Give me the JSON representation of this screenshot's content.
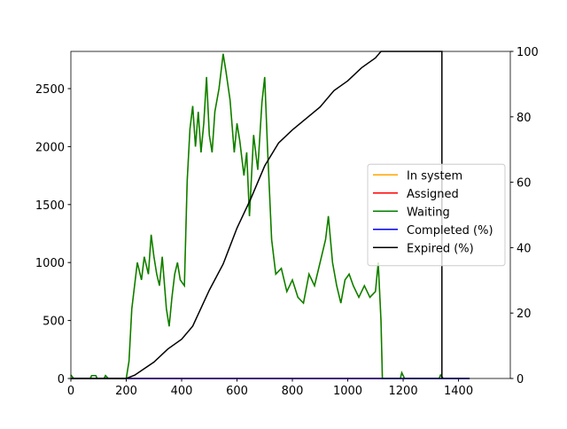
{
  "chart_data": {
    "type": "line",
    "xlim": [
      0,
      1587
    ],
    "xticks": [
      0,
      200,
      400,
      600,
      800,
      1000,
      1200,
      1400
    ],
    "ylim": [
      0,
      2821
    ],
    "yticks": [
      0,
      500,
      1000,
      1500,
      2000,
      2500
    ],
    "y2lim": [
      0,
      100
    ],
    "y2ticks": [
      0,
      20,
      40,
      60,
      80,
      100
    ],
    "legend": "center right",
    "series": [
      {
        "name": "In system",
        "color": "#ffa500",
        "x": [
          0,
          10,
          70,
          75,
          90,
          95,
          120,
          125,
          135,
          200,
          210,
          220,
          230,
          240,
          255,
          265,
          280,
          290,
          300,
          310,
          320,
          330,
          345,
          355,
          365,
          375,
          385,
          395,
          410,
          420,
          430,
          440,
          450,
          460,
          470,
          480,
          490,
          500,
          510,
          520,
          535,
          550,
          560,
          575,
          590,
          600,
          610,
          625,
          635,
          645,
          660,
          675,
          690,
          700,
          710,
          725,
          740,
          760,
          780,
          800,
          820,
          840,
          860,
          880,
          900,
          920,
          930,
          945,
          960,
          975,
          990,
          1005,
          1020,
          1040,
          1060,
          1080,
          1100,
          1110,
          1120,
          1125,
          1190,
          1195,
          1205,
          1330,
          1335,
          1345,
          1440
        ],
        "values": [
          30,
          0,
          0,
          25,
          25,
          0,
          0,
          25,
          0,
          0,
          150,
          600,
          800,
          1000,
          850,
          1050,
          900,
          1240,
          1050,
          900,
          800,
          1050,
          600,
          450,
          700,
          900,
          1000,
          850,
          800,
          1700,
          2150,
          2350,
          2000,
          2300,
          1950,
          2200,
          2600,
          2100,
          1950,
          2300,
          2500,
          2800,
          2650,
          2400,
          1950,
          2200,
          2050,
          1750,
          1950,
          1400,
          2100,
          1800,
          2380,
          2600,
          2000,
          1200,
          900,
          950,
          750,
          850,
          700,
          650,
          900,
          800,
          1000,
          1200,
          1400,
          1000,
          800,
          650,
          850,
          900,
          800,
          700,
          800,
          700,
          750,
          1000,
          500,
          0,
          0,
          50,
          0,
          0,
          30,
          0,
          0
        ]
      },
      {
        "name": "Assigned",
        "color": "#ff0000",
        "x": [
          0,
          1440
        ],
        "values": [
          0,
          0
        ]
      },
      {
        "name": "Waiting",
        "color": "#008000",
        "x": [
          0,
          10,
          70,
          75,
          90,
          95,
          120,
          125,
          135,
          200,
          210,
          220,
          230,
          240,
          255,
          265,
          280,
          290,
          300,
          310,
          320,
          330,
          345,
          355,
          365,
          375,
          385,
          395,
          410,
          420,
          430,
          440,
          450,
          460,
          470,
          480,
          490,
          500,
          510,
          520,
          535,
          550,
          560,
          575,
          590,
          600,
          610,
          625,
          635,
          645,
          660,
          675,
          690,
          700,
          710,
          725,
          740,
          760,
          780,
          800,
          820,
          840,
          860,
          880,
          900,
          920,
          930,
          945,
          960,
          975,
          990,
          1005,
          1020,
          1040,
          1060,
          1080,
          1100,
          1110,
          1120,
          1125,
          1190,
          1195,
          1205,
          1330,
          1335,
          1345,
          1440
        ],
        "values": [
          30,
          0,
          0,
          25,
          25,
          0,
          0,
          25,
          0,
          0,
          150,
          600,
          800,
          1000,
          850,
          1050,
          900,
          1240,
          1050,
          900,
          800,
          1050,
          600,
          450,
          700,
          900,
          1000,
          850,
          800,
          1700,
          2150,
          2350,
          2000,
          2300,
          1950,
          2200,
          2600,
          2100,
          1950,
          2300,
          2500,
          2800,
          2650,
          2400,
          1950,
          2200,
          2050,
          1750,
          1950,
          1400,
          2100,
          1800,
          2380,
          2600,
          2000,
          1200,
          900,
          950,
          750,
          850,
          700,
          650,
          900,
          800,
          1000,
          1200,
          1400,
          1000,
          800,
          650,
          850,
          900,
          800,
          700,
          800,
          700,
          750,
          1000,
          500,
          0,
          0,
          50,
          0,
          0,
          30,
          0,
          0
        ]
      },
      {
        "name": "Completed (%)",
        "color": "#0000ff",
        "axis": "y2",
        "x": [
          0,
          1440
        ],
        "values": [
          0,
          0
        ]
      },
      {
        "name": "Expired (%)",
        "color": "#000000",
        "axis": "y2",
        "x": [
          0,
          200,
          230,
          300,
          350,
          400,
          440,
          500,
          550,
          600,
          650,
          700,
          750,
          800,
          900,
          950,
          1000,
          1050,
          1100,
          1120,
          1200,
          1340,
          1340
        ],
        "values": [
          0,
          0,
          1,
          5,
          9,
          12,
          16,
          27,
          35,
          46,
          55,
          65,
          72,
          76,
          83,
          88,
          91,
          95,
          98,
          100,
          100,
          100,
          0
        ]
      }
    ]
  }
}
